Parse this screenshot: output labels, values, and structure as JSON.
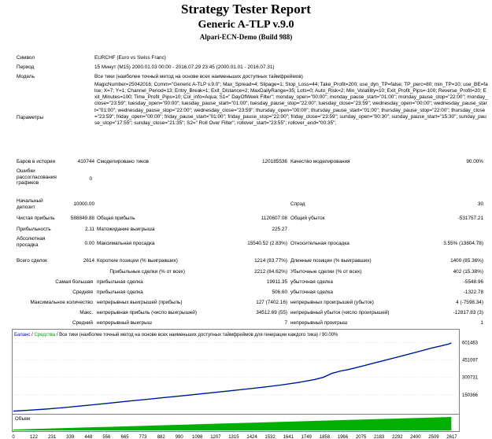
{
  "header": {
    "title": "Strategy Tester Report",
    "ea_name": "Generic A-TLP v.9.0",
    "server": "Alpari-ECN-Demo (Build 988)"
  },
  "info": {
    "symbol_label": "Символ",
    "symbol_value": "EURCHF (Euro vs Swiss Franc)",
    "period_label": "Период",
    "period_value": "15 Минут (M15) 2000.01.03 00:00 - 2016.07.29 23:45 (2000.01.01 - 2016.07.31)",
    "model_label": "Модель",
    "model_value": "Все тики (наиболее точный метод на основе всех наименьших доступных таймфреймов)",
    "params_label": "Параметры",
    "params_value": "MagicNumber=25042016; Comm=\"Generic A-TLP v.9.0\"; Max_Spread=4; Slipage=1; Stop_Loss=44; Take_Profit=200; use_dyn_TP=false; TP_perc=80; min_TP=10; use_BE=false; X=7; Y=1; Channel_Period=13; Entry_Break=1; Exit_Distance=2; MaxDailyRange=35; Lots=0; Auto_Risk=2; Min_Volatility=10; Exit_Profit_Pips=-100; Reverse_Profit=20; Exit_Minutes=100; Time_Profit_Pips=10; Col_info=Aqua; S1=\" DayOfWeek Filter\"; monday_open=\"00:00\"; monday_pause_start=\"01:00\"; monday_pause_stop=\"22:00\"; monday_close=\"23:59\"; tuesday_open=\"00:00\"; tuesday_pause_start=\"01:00\"; tuesday_pause_stop=\"22:00\"; tuesday_close=\"23:59\"; wednesday_open=\"00:00\"; wednesday_pause_start=\"01:00\"; wednesday_pause_stop=\"22:00\"; wednesday_close=\"23:59\"; thursday_open=\"00:00\"; thursday_pause_start=\"01:00\"; thursday_pause_stop=\"22:00\"; thursday_close=\"23:59\"; friday_open=\"00:00\"; friday_pause_start=\"01:00\"; friday_pause_stop=\"22:00\"; friday_close=\"23:59\"; sunday_open=\"00:30\"; sunday_pause_start=\"15:30\"; sunday_pause_stop=\"17:55\"; sunday_close=\"21:35\"; S2=\" Roll Over Filter\"; rollover_start=\"23:55\"; rollover_end=\"00:35\";"
  },
  "stats": {
    "bars_label": "Баров в истории",
    "bars_value": "410744",
    "ticks_label": "Смоделировано тиков",
    "ticks_value": "120185536",
    "quality_label": "Качество моделирования",
    "quality_value": "90.00%",
    "errors_label": "Ошибки рассогласования графиков",
    "errors_value": "0",
    "deposit_label": "Начальный депозит",
    "deposit_value": "10000.00",
    "spread_label": "Спрэд",
    "spread_value": "30",
    "net_profit_label": "Чистая прибыль",
    "net_profit_value": "588849.88",
    "gross_profit_label": "Общая прибыль",
    "gross_profit_value": "1120607.08",
    "gross_loss_label": "Общий убыток",
    "gross_loss_value": "-531757.21",
    "profit_factor_label": "Прибыльность",
    "profit_factor_value": "2.11",
    "expected_payoff_label": "Матожидание выигрыша",
    "expected_payoff_value": "225.27",
    "abs_dd_label": "Абсолютная просадка",
    "abs_dd_value": "0.00",
    "max_dd_label": "Максимальная просадка",
    "max_dd_value": "15540.52 (2.83%)",
    "rel_dd_label": "Относительная просадка",
    "rel_dd_value": "3.55% (13804.78)",
    "total_trades_label": "Всего сделок",
    "total_trades_value": "2614",
    "short_label": "Короткие позиции (% выигравших)",
    "short_value": "1214 (83.77%)",
    "long_label": "Длинные позиции (% выигравших)",
    "long_value": "1400 (85.36%)",
    "profit_trades_label": "Прибыльные сделки (% от всех)",
    "profit_trades_value": "2212 (84.62%)",
    "loss_trades_label": "Убыточные сделки (% от всех)",
    "loss_trades_value": "402 (15.38%)",
    "largest_label": "Самая большая",
    "largest_profit_label": "прибыльная сделка",
    "largest_profit_value": "19911.35",
    "largest_loss_label": "убыточная сделка",
    "largest_loss_value": "-5548.96",
    "average_label": "Средняя",
    "average_profit_label": "прибыльная сделка",
    "average_profit_value": "506.60",
    "average_loss_label": "убыточная сделка",
    "average_loss_value": "-1322.78",
    "max_label": "Максимальное количество",
    "max_cons_wins_label": "непрерывных выигрышей (прибыль)",
    "max_cons_wins_value": "127 (7402.16)",
    "max_cons_losses_label": "непрерывных проигрышей (убыток)",
    "max_cons_losses_value": "4 (-7598.34)",
    "maximal_label": "Макс.",
    "maximal_profit_label": "непрерывная прибыль (число выигрышей)",
    "maximal_profit_value": "34512.69 (55)",
    "maximal_loss_label": "непрерывный убыток (число проигрышей)",
    "maximal_loss_value": "-12817.83 (3)",
    "avg_cons_label": "Средний",
    "avg_cons_wins_label": "непрерывный выигрыш",
    "avg_cons_wins_value": "7",
    "avg_cons_losses_label": "непрерывный проигрыш",
    "avg_cons_losses_value": "1"
  },
  "chart_data": {
    "type": "line",
    "legend": {
      "balance": "Баланс",
      "sep1": " / ",
      "equity": "Средства",
      "sep2": " / ",
      "model": "Все тики (наиболее точный метод на основе всех наименьших доступных таймфреймов для генерации каждого тика)",
      "sep3": " / ",
      "quality": "90.00%"
    },
    "volume_label": "Объем",
    "y_ticks": [
      "601463",
      "451097",
      "300731",
      "150366"
    ],
    "y_tick_values": [
      601463,
      451097,
      300731,
      150366
    ],
    "ylim": [
      0,
      625000
    ],
    "xlim": [
      0,
      2650
    ],
    "x_ticks": [
      "0",
      "122",
      "231",
      "339",
      "448",
      "556",
      "665",
      "773",
      "882",
      "990",
      "1098",
      "1207",
      "1315",
      "1424",
      "1532",
      "1641",
      "1749",
      "1858",
      "1966",
      "2075",
      "2183",
      "2292",
      "2400",
      "2509",
      "2617"
    ],
    "x_tick_values": [
      0,
      122,
      231,
      339,
      448,
      556,
      665,
      773,
      882,
      990,
      1098,
      1207,
      1315,
      1424,
      1532,
      1641,
      1749,
      1858,
      1966,
      2075,
      2183,
      2292,
      2400,
      2509,
      2617
    ],
    "colors": {
      "balance": "#0000c8",
      "equity": "#00a000",
      "volume": "#00b000",
      "legend_text": "#000000"
    },
    "series": [
      {
        "name": "Баланс",
        "x": [
          0,
          100,
          200,
          300,
          400,
          500,
          600,
          700,
          800,
          900,
          1000,
          1100,
          1200,
          1300,
          1400,
          1500,
          1600,
          1700,
          1800,
          1850,
          1900,
          1950,
          2000,
          2050,
          2100,
          2150,
          2200,
          2250,
          2300,
          2350,
          2400,
          2450,
          2500,
          2550,
          2600,
          2614
        ],
        "y": [
          10000,
          18000,
          28000,
          40000,
          54000,
          68000,
          83000,
          98000,
          112000,
          127000,
          141000,
          156000,
          171000,
          186000,
          202000,
          218000,
          236000,
          257000,
          283000,
          302000,
          335000,
          355000,
          369000,
          387000,
          405000,
          424000,
          442000,
          461000,
          479000,
          498000,
          517000,
          536000,
          556000,
          572000,
          590000,
          598849
        ]
      }
    ]
  }
}
